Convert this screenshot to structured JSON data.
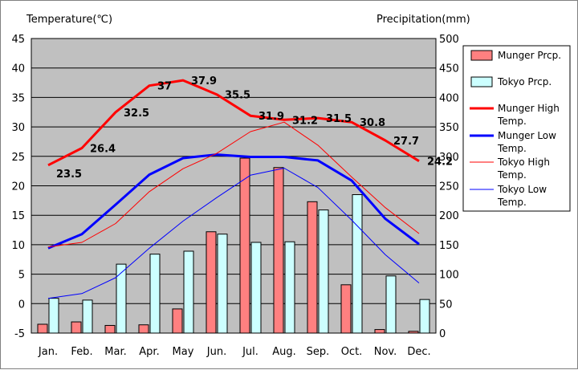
{
  "chart_data": {
    "type": "bar",
    "y_left_label": "Temperature(℃)",
    "y_right_label": "Precipitation(mm)",
    "y_left_range": [
      -5,
      45
    ],
    "y_right_range": [
      0,
      500
    ],
    "y_left_ticks": [
      "-5",
      "0",
      "5",
      "10",
      "15",
      "20",
      "25",
      "30",
      "35",
      "40",
      "45"
    ],
    "y_right_ticks": [
      "0",
      "50",
      "100",
      "150",
      "200",
      "250",
      "300",
      "350",
      "400",
      "450",
      "500"
    ],
    "categories": [
      "Jan.",
      "Feb.",
      "Mar.",
      "Apr.",
      "May",
      "Jun.",
      "Jul.",
      "Aug.",
      "Sep.",
      "Oct.",
      "Nov.",
      "Dec."
    ],
    "bar_series": [
      {
        "name": "Munger Prcp.",
        "color": "#ff8080",
        "values": [
          15,
          19,
          13,
          14,
          41,
          172,
          297,
          281,
          223,
          82,
          6,
          3
        ]
      },
      {
        "name": "Tokyo Prcp.",
        "color": "#ccffff",
        "values": [
          59,
          56,
          117,
          134,
          139,
          168,
          154,
          155,
          209,
          235,
          97,
          57
        ]
      }
    ],
    "line_series": [
      {
        "name": "Munger High Temp.",
        "color": "#ff0000",
        "width": 3,
        "values": [
          23.5,
          26.4,
          32.5,
          37,
          37.9,
          35.5,
          31.9,
          31.2,
          31.5,
          30.8,
          27.7,
          24.2
        ]
      },
      {
        "name": "Munger Low Temp.",
        "color": "#0000ff",
        "width": 3,
        "values": [
          9.4,
          11.8,
          16.8,
          21.9,
          24.7,
          25.3,
          24.9,
          24.9,
          24.3,
          20.9,
          14.4,
          10.1
        ]
      },
      {
        "name": "Tokyo High Temp.",
        "color": "#ff0000",
        "width": 1,
        "values": [
          9.6,
          10.4,
          13.6,
          19.0,
          22.9,
          25.5,
          29.2,
          30.8,
          26.9,
          21.5,
          16.3,
          11.9
        ]
      },
      {
        "name": "Tokyo Low Temp.",
        "color": "#0000ff",
        "width": 1,
        "values": [
          0.9,
          1.7,
          4.4,
          9.4,
          14.0,
          18.0,
          21.8,
          23.0,
          19.7,
          14.2,
          8.3,
          3.5
        ]
      }
    ],
    "data_labels": [
      "23.5",
      "26.4",
      "32.5",
      "37",
      "37.9",
      "35.5",
      "31.9",
      "31.2",
      "31.5",
      "30.8",
      "27.7",
      "24.2"
    ],
    "legend": {
      "position": "right",
      "items": [
        {
          "label": "Munger Prcp.",
          "kind": "bar",
          "color": "#ff8080"
        },
        {
          "label": "Tokyo Prcp.",
          "kind": "bar",
          "color": "#ccffff"
        },
        {
          "label": "Munger High Temp.",
          "kind": "line",
          "color": "#ff0000",
          "width": 3
        },
        {
          "label": "Munger Low Temp.",
          "kind": "line",
          "color": "#0000ff",
          "width": 3
        },
        {
          "label": "Tokyo High Temp.",
          "kind": "line",
          "color": "#ff0000",
          "width": 1
        },
        {
          "label": "Tokyo Low Temp.",
          "kind": "line",
          "color": "#0000ff",
          "width": 1
        }
      ]
    },
    "plot_background": "#c0c0c0",
    "grid": true
  }
}
